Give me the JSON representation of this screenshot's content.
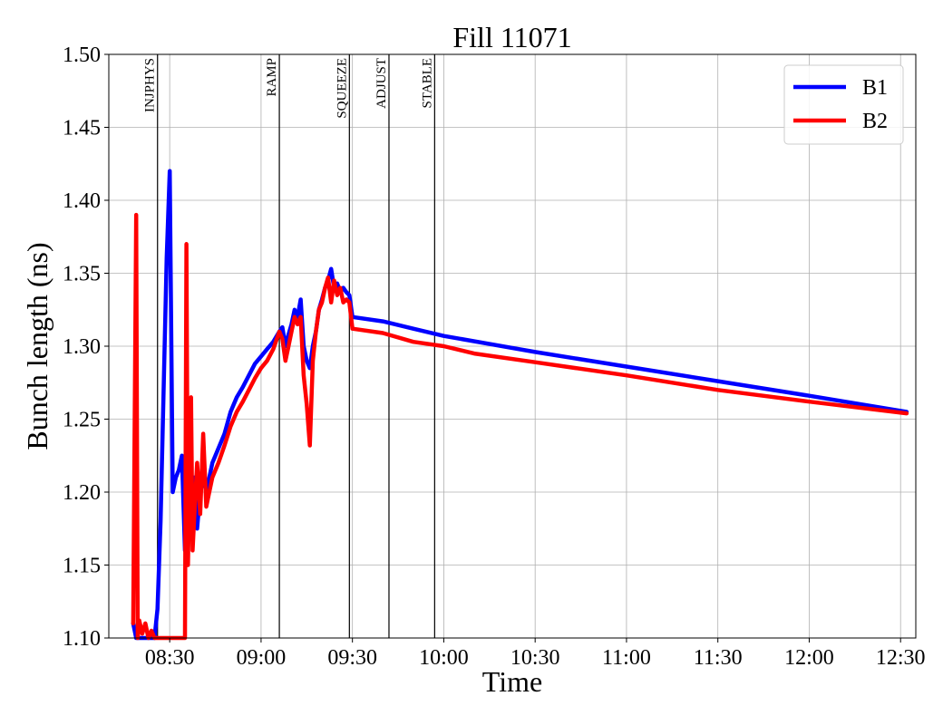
{
  "chart_data": {
    "type": "line",
    "title": "Fill 11071",
    "xlabel": "Time",
    "ylabel": "Bunch length (ns)",
    "x_ticks": [
      "08:30",
      "09:00",
      "09:30",
      "10:00",
      "10:30",
      "11:00",
      "11:30",
      "12:00",
      "12:30"
    ],
    "y_ticks": [
      "1.10",
      "1.15",
      "1.20",
      "1.25",
      "1.30",
      "1.35",
      "1.40",
      "1.45",
      "1.50"
    ],
    "xlim": [
      "08:10",
      "12:35"
    ],
    "ylim": [
      1.1,
      1.5
    ],
    "grid": true,
    "legend_position": "top-right",
    "phases": [
      {
        "label": "INJPHYS",
        "time": "08:26"
      },
      {
        "label": "RAMP",
        "time": "09:06"
      },
      {
        "label": "SQUEEZE",
        "time": "09:29"
      },
      {
        "label": "ADJUST",
        "time": "09:42"
      },
      {
        "label": "STABLE",
        "time": "09:57"
      }
    ],
    "series": [
      {
        "name": "B1",
        "color": "#0000ff",
        "points": [
          [
            "08:18",
            1.11
          ],
          [
            "08:19",
            1.1
          ],
          [
            "08:25",
            1.1
          ],
          [
            "08:26",
            1.12
          ],
          [
            "08:27",
            1.18
          ],
          [
            "08:29",
            1.36
          ],
          [
            "08:30",
            1.42
          ],
          [
            "08:31",
            1.2
          ],
          [
            "08:32",
            1.21
          ],
          [
            "08:33",
            1.215
          ],
          [
            "08:34",
            1.225
          ],
          [
            "08:35",
            1.16
          ],
          [
            "08:36",
            1.2
          ],
          [
            "08:37",
            1.17
          ],
          [
            "08:38",
            1.21
          ],
          [
            "08:39",
            1.175
          ],
          [
            "08:40",
            1.2
          ],
          [
            "08:41",
            1.21
          ],
          [
            "08:42",
            1.2
          ],
          [
            "08:44",
            1.22
          ],
          [
            "08:46",
            1.23
          ],
          [
            "08:48",
            1.24
          ],
          [
            "08:50",
            1.255
          ],
          [
            "08:52",
            1.265
          ],
          [
            "08:54",
            1.272
          ],
          [
            "08:56",
            1.28
          ],
          [
            "08:58",
            1.288
          ],
          [
            "09:00",
            1.293
          ],
          [
            "09:02",
            1.298
          ],
          [
            "09:04",
            1.303
          ],
          [
            "09:06",
            1.31
          ],
          [
            "09:07",
            1.313
          ],
          [
            "09:08",
            1.3
          ],
          [
            "09:09",
            1.308
          ],
          [
            "09:10",
            1.315
          ],
          [
            "09:11",
            1.325
          ],
          [
            "09:12",
            1.32
          ],
          [
            "09:13",
            1.332
          ],
          [
            "09:14",
            1.3
          ],
          [
            "09:15",
            1.29
          ],
          [
            "09:16",
            1.285
          ],
          [
            "09:17",
            1.3
          ],
          [
            "09:18",
            1.31
          ],
          [
            "09:19",
            1.325
          ],
          [
            "09:20",
            1.332
          ],
          [
            "09:21",
            1.34
          ],
          [
            "09:22",
            1.345
          ],
          [
            "09:23",
            1.353
          ],
          [
            "09:24",
            1.34
          ],
          [
            "09:25",
            1.343
          ],
          [
            "09:26",
            1.337
          ],
          [
            "09:27",
            1.34
          ],
          [
            "09:28",
            1.337
          ],
          [
            "09:29",
            1.335
          ],
          [
            "09:30",
            1.32
          ],
          [
            "09:40",
            1.317
          ],
          [
            "09:50",
            1.312
          ],
          [
            "10:00",
            1.307
          ],
          [
            "10:30",
            1.296
          ],
          [
            "11:00",
            1.286
          ],
          [
            "11:30",
            1.276
          ],
          [
            "12:00",
            1.266
          ],
          [
            "12:32",
            1.255
          ]
        ]
      },
      {
        "name": "B2",
        "color": "#ff0000",
        "points": [
          [
            "08:18",
            1.11
          ],
          [
            "08:19",
            1.39
          ],
          [
            "08:19.5",
            1.1
          ],
          [
            "08:20",
            1.112
          ],
          [
            "08:21",
            1.103
          ],
          [
            "08:22",
            1.11
          ],
          [
            "08:23",
            1.1
          ],
          [
            "08:24",
            1.105
          ],
          [
            "08:25",
            1.1
          ],
          [
            "08:35",
            1.1
          ],
          [
            "08:35.5",
            1.37
          ],
          [
            "08:36",
            1.15
          ],
          [
            "08:37",
            1.265
          ],
          [
            "08:37.5",
            1.16
          ],
          [
            "08:38",
            1.18
          ],
          [
            "08:39",
            1.22
          ],
          [
            "08:40",
            1.185
          ],
          [
            "08:41",
            1.24
          ],
          [
            "08:42",
            1.19
          ],
          [
            "08:43",
            1.2
          ],
          [
            "08:44",
            1.21
          ],
          [
            "08:46",
            1.22
          ],
          [
            "08:48",
            1.232
          ],
          [
            "08:50",
            1.245
          ],
          [
            "08:52",
            1.255
          ],
          [
            "08:54",
            1.262
          ],
          [
            "08:56",
            1.27
          ],
          [
            "08:58",
            1.278
          ],
          [
            "09:00",
            1.285
          ],
          [
            "09:02",
            1.29
          ],
          [
            "09:04",
            1.298
          ],
          [
            "09:06",
            1.31
          ],
          [
            "09:07",
            1.305
          ],
          [
            "09:08",
            1.29
          ],
          [
            "09:09",
            1.3
          ],
          [
            "09:10",
            1.31
          ],
          [
            "09:11",
            1.32
          ],
          [
            "09:12",
            1.315
          ],
          [
            "09:13",
            1.32
          ],
          [
            "09:14",
            1.28
          ],
          [
            "09:15",
            1.26
          ],
          [
            "09:16",
            1.232
          ],
          [
            "09:17",
            1.29
          ],
          [
            "09:18",
            1.31
          ],
          [
            "09:19",
            1.325
          ],
          [
            "09:20",
            1.33
          ],
          [
            "09:21",
            1.34
          ],
          [
            "09:22",
            1.347
          ],
          [
            "09:23",
            1.33
          ],
          [
            "09:24",
            1.345
          ],
          [
            "09:25",
            1.335
          ],
          [
            "09:26",
            1.34
          ],
          [
            "09:27",
            1.33
          ],
          [
            "09:28",
            1.332
          ],
          [
            "09:29",
            1.33
          ],
          [
            "09:30",
            1.312
          ],
          [
            "09:40",
            1.309
          ],
          [
            "09:50",
            1.303
          ],
          [
            "10:00",
            1.3
          ],
          [
            "10:10",
            1.295
          ],
          [
            "10:30",
            1.289
          ],
          [
            "11:00",
            1.28
          ],
          [
            "11:30",
            1.27
          ],
          [
            "12:00",
            1.262
          ],
          [
            "12:32",
            1.254
          ]
        ]
      }
    ]
  }
}
